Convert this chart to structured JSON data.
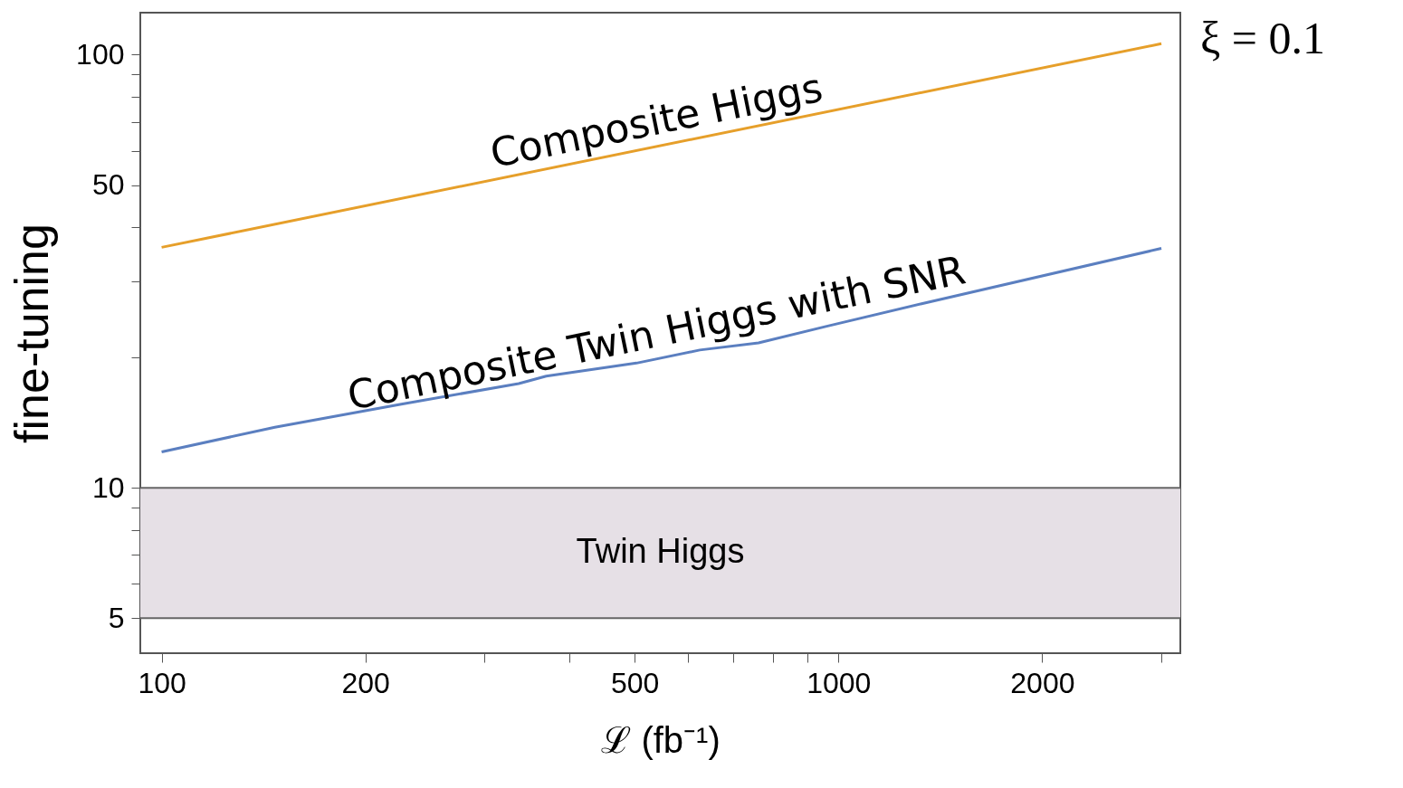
{
  "chart_data": {
    "type": "line",
    "xlabel": "ℒ (fb⁻¹)",
    "ylabel": "fine-tuning",
    "log": "xy",
    "marker": "none",
    "line_style": "solid",
    "xlim": [
      93,
      3200
    ],
    "ylim": [
      4.15,
      125
    ],
    "xticks": [
      100,
      200,
      {
        "value": 300,
        "label": null
      },
      {
        "value": 400,
        "label": null
      },
      500,
      {
        "value": 600,
        "label": null
      },
      {
        "value": 700,
        "label": null
      },
      {
        "value": 800,
        "label": null
      },
      {
        "value": 900,
        "label": null
      },
      1000,
      2000,
      {
        "value": 3000,
        "label": null
      }
    ],
    "yticks": [
      5,
      {
        "value": 6,
        "label": null
      },
      {
        "value": 7,
        "label": null
      },
      {
        "value": 8,
        "label": null
      },
      {
        "value": 9,
        "label": null
      },
      10,
      {
        "value": 20,
        "label": null
      },
      {
        "value": 30,
        "label": null
      },
      {
        "value": 40,
        "label": null
      },
      50,
      {
        "value": 60,
        "label": null
      },
      {
        "value": 70,
        "label": null
      },
      {
        "value": 80,
        "label": null
      },
      {
        "value": 90,
        "label": null
      },
      100
    ],
    "series": [
      {
        "name": "Composite Higgs",
        "color": "#e69f2a",
        "x": [
          100,
          3000
        ],
        "values": [
          35.9,
          106
        ]
      },
      {
        "name": "Composite Twin Higgs with SNR",
        "color": "#5b7fc0",
        "x": [
          100,
          147,
          226,
          337,
          370,
          503,
          624,
          762,
          961,
          1327,
          3000
        ],
        "values": [
          12.1,
          13.8,
          15.6,
          17.4,
          18.1,
          19.4,
          20.8,
          21.6,
          23.6,
          26.6,
          35.7
        ]
      }
    ],
    "bands": [
      {
        "axis": "y",
        "from": 5,
        "to": 10,
        "label": "Twin Higgs",
        "color": "#e6e0e6"
      }
    ],
    "annotations": [
      "ξ = 0.1"
    ]
  }
}
